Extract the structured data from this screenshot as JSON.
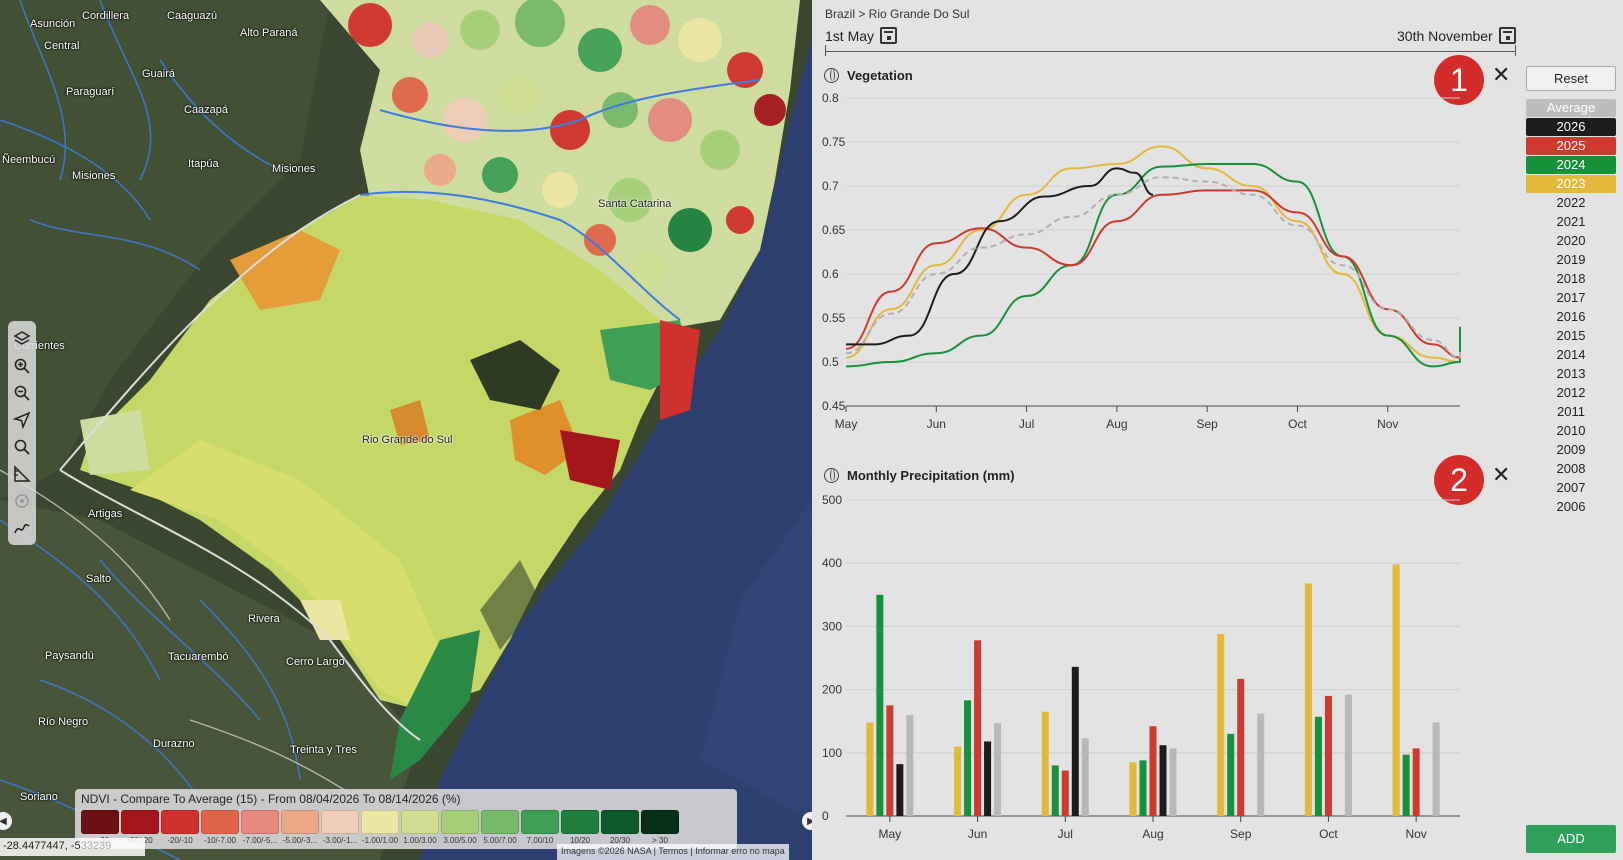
{
  "map": {
    "places": [
      {
        "name": "Asunción",
        "k": "p1"
      },
      {
        "name": "Cordillera",
        "k": "p2"
      },
      {
        "name": "Caaguazú",
        "k": "p3"
      },
      {
        "name": "Alto Paraná",
        "k": "p4"
      },
      {
        "name": "Central",
        "k": "p5"
      },
      {
        "name": "Guairá",
        "k": "p6"
      },
      {
        "name": "Paraguarí",
        "k": "p7"
      },
      {
        "name": "Caazapá",
        "k": "p8"
      },
      {
        "name": "Ñeembucú",
        "k": "p9"
      },
      {
        "name": "Itapúa",
        "k": "p10"
      },
      {
        "name": "Misiones",
        "k": "p11"
      },
      {
        "name": "Misiones",
        "k": "p12"
      },
      {
        "name": "Santa Catarina",
        "k": "p13"
      },
      {
        "name": "Corrientes",
        "k": "p14"
      },
      {
        "name": "Rio Grande do Sul",
        "k": "p15"
      },
      {
        "name": "Artigas",
        "k": "p16"
      },
      {
        "name": "Salto",
        "k": "p17"
      },
      {
        "name": "Rivera",
        "k": "p18"
      },
      {
        "name": "Paysandú",
        "k": "p19"
      },
      {
        "name": "Tacuarembó",
        "k": "p20"
      },
      {
        "name": "Cerro Largo",
        "k": "p21"
      },
      {
        "name": "Río Negro",
        "k": "p22"
      },
      {
        "name": "Durazno",
        "k": "p23"
      },
      {
        "name": "Treinta y Tres",
        "k": "p24"
      },
      {
        "name": "Soriano",
        "k": "p25"
      }
    ],
    "tools": [
      "layers-icon",
      "zoom-in-icon",
      "zoom-out-icon",
      "navigate-icon",
      "search-icon",
      "measure-icon",
      "target-icon",
      "draw-icon"
    ],
    "legend": {
      "title": "NDVI - Compare To Average (15) - From 08/04/2026 To 08/14/2026 (%)",
      "swatches": [
        {
          "label": "< -30",
          "color": "#6b0f12"
        },
        {
          "label": "-30/-20",
          "color": "#a3161c"
        },
        {
          "label": "-20/-10",
          "color": "#d0312d"
        },
        {
          "label": "-10/-7.00",
          "color": "#e0644a"
        },
        {
          "label": "-7.00/-5...",
          "color": "#e58880"
        },
        {
          "label": "-5.00/-3...",
          "color": "#eda888"
        },
        {
          "label": "-3.00/-1...",
          "color": "#f0cdb9"
        },
        {
          "label": "-1.00/1.00",
          "color": "#ece6a3"
        },
        {
          "label": "1.00/3.00",
          "color": "#cedd91"
        },
        {
          "label": "3.00/5.00",
          "color": "#a6cf77"
        },
        {
          "label": "5.00/7.00",
          "color": "#77b96a"
        },
        {
          "label": "7.00/10",
          "color": "#3f9f55"
        },
        {
          "label": "10/20",
          "color": "#1f7f3d"
        },
        {
          "label": "20/30",
          "color": "#0c5a29"
        },
        {
          "label": "> 30",
          "color": "#072e17"
        }
      ]
    },
    "coords": "-28.4477447, -5",
    "coords_faded": "33239",
    "attribution": "Imagens ©2026 NASA | Termos | Informar erro no mapa"
  },
  "panel": {
    "breadcrumb": "Brazil > Rio Grande Do Sul",
    "date_start": "1st May",
    "date_end": "30th November",
    "reset_label": "Reset",
    "add_label": "ADD",
    "years": [
      {
        "label": "Average",
        "bg": "#bdbdbd",
        "fg": "#ffffff"
      },
      {
        "label": "2026",
        "bg": "#1d1d1d",
        "fg": "#ffffff"
      },
      {
        "label": "2025",
        "bg": "#cf3a30",
        "fg": "#ffffff"
      },
      {
        "label": "2024",
        "bg": "#17913a",
        "fg": "#ffffff"
      },
      {
        "label": "2023",
        "bg": "#e2b93b",
        "fg": "#ffffff"
      },
      {
        "label": "2022",
        "bg": "",
        "fg": "#222222"
      },
      {
        "label": "2021",
        "bg": "",
        "fg": "#222222"
      },
      {
        "label": "2020",
        "bg": "",
        "fg": "#222222"
      },
      {
        "label": "2019",
        "bg": "",
        "fg": "#222222"
      },
      {
        "label": "2018",
        "bg": "",
        "fg": "#222222"
      },
      {
        "label": "2017",
        "bg": "",
        "fg": "#222222"
      },
      {
        "label": "2016",
        "bg": "",
        "fg": "#222222"
      },
      {
        "label": "2015",
        "bg": "",
        "fg": "#222222"
      },
      {
        "label": "2014",
        "bg": "",
        "fg": "#222222"
      },
      {
        "label": "2013",
        "bg": "",
        "fg": "#222222"
      },
      {
        "label": "2012",
        "bg": "",
        "fg": "#222222"
      },
      {
        "label": "2011",
        "bg": "",
        "fg": "#222222"
      },
      {
        "label": "2010",
        "bg": "",
        "fg": "#222222"
      },
      {
        "label": "2009",
        "bg": "",
        "fg": "#222222"
      },
      {
        "label": "2008",
        "bg": "",
        "fg": "#222222"
      },
      {
        "label": "2007",
        "bg": "",
        "fg": "#222222"
      },
      {
        "label": "2006",
        "bg": "",
        "fg": "#222222"
      }
    ],
    "badges": [
      "1",
      "2"
    ]
  },
  "chart_data": [
    {
      "type": "line",
      "title": "Vegetation",
      "xlabel": "",
      "ylabel": "",
      "categories": [
        "May",
        "Jun",
        "Jul",
        "Aug",
        "Sep",
        "Oct",
        "Nov"
      ],
      "y_ticks": [
        "0.45",
        "0.5",
        "0.55",
        "0.6",
        "0.65",
        "0.7",
        "0.75",
        "0.8"
      ],
      "ylim": [
        0.45,
        0.8
      ],
      "grid": true,
      "series": [
        {
          "name": "2023",
          "color": "#e2b93b",
          "dashed": false,
          "points": [
            [
              0,
              0.505
            ],
            [
              0.5,
              0.56
            ],
            [
              1,
              0.61
            ],
            [
              1.5,
              0.65
            ],
            [
              2,
              0.69
            ],
            [
              2.5,
              0.72
            ],
            [
              3,
              0.725
            ],
            [
              3.5,
              0.745
            ],
            [
              4,
              0.72
            ],
            [
              4.5,
              0.7
            ],
            [
              5,
              0.66
            ],
            [
              5.5,
              0.6
            ],
            [
              6,
              0.53
            ],
            [
              6.5,
              0.505
            ],
            [
              7,
              0.5
            ],
            [
              7.5,
              0.51
            ]
          ]
        },
        {
          "name": "2024",
          "color": "#17913a",
          "dashed": false,
          "points": [
            [
              0,
              0.495
            ],
            [
              0.5,
              0.5
            ],
            [
              1,
              0.51
            ],
            [
              1.5,
              0.53
            ],
            [
              2,
              0.575
            ],
            [
              2.5,
              0.61
            ],
            [
              3,
              0.69
            ],
            [
              3.5,
              0.722
            ],
            [
              4,
              0.725
            ],
            [
              4.5,
              0.725
            ],
            [
              5,
              0.705
            ],
            [
              5.5,
              0.62
            ],
            [
              6,
              0.53
            ],
            [
              6.5,
              0.495
            ],
            [
              7,
              0.5
            ],
            [
              7.5,
              0.54
            ]
          ]
        },
        {
          "name": "2025",
          "color": "#cf3a30",
          "dashed": false,
          "points": [
            [
              0,
              0.515
            ],
            [
              0.5,
              0.58
            ],
            [
              1,
              0.635
            ],
            [
              1.5,
              0.652
            ],
            [
              2,
              0.63
            ],
            [
              2.5,
              0.61
            ],
            [
              3,
              0.66
            ],
            [
              3.5,
              0.69
            ],
            [
              4,
              0.695
            ],
            [
              4.5,
              0.695
            ],
            [
              5,
              0.67
            ],
            [
              5.5,
              0.62
            ],
            [
              6,
              0.56
            ],
            [
              6.5,
              0.52
            ],
            [
              7,
              0.505
            ],
            [
              7.5,
              0.505
            ]
          ]
        },
        {
          "name": "2026",
          "color": "#1d1d1d",
          "dashed": false,
          "points": [
            [
              0,
              0.52
            ],
            [
              0.3,
              0.52
            ],
            [
              0.7,
              0.53
            ],
            [
              1.2,
              0.6
            ],
            [
              1.7,
              0.66
            ],
            [
              2.2,
              0.688
            ],
            [
              2.7,
              0.7
            ],
            [
              3,
              0.72
            ],
            [
              3.2,
              0.715
            ],
            [
              3.4,
              0.69
            ]
          ]
        },
        {
          "name": "Average",
          "color": "#b0b0b0",
          "dashed": true,
          "points": [
            [
              0,
              0.51
            ],
            [
              0.5,
              0.555
            ],
            [
              1,
              0.6
            ],
            [
              1.5,
              0.63
            ],
            [
              2,
              0.645
            ],
            [
              2.5,
              0.665
            ],
            [
              3,
              0.69
            ],
            [
              3.5,
              0.71
            ],
            [
              4,
              0.705
            ],
            [
              4.5,
              0.69
            ],
            [
              5,
              0.655
            ],
            [
              5.5,
              0.61
            ],
            [
              6,
              0.56
            ],
            [
              6.5,
              0.525
            ],
            [
              7,
              0.505
            ],
            [
              7.5,
              0.515
            ]
          ]
        }
      ]
    },
    {
      "type": "bar",
      "title": "Monthly Precipitation (mm)",
      "xlabel": "",
      "ylabel": "",
      "categories": [
        "May",
        "Jun",
        "Jul",
        "Aug",
        "Sep",
        "Oct",
        "Nov"
      ],
      "y_ticks": [
        "0",
        "100",
        "200",
        "300",
        "400",
        "500"
      ],
      "ylim": [
        0,
        500
      ],
      "grid": true,
      "series": [
        {
          "name": "2023",
          "color": "#e2b93b",
          "values": [
            148,
            110,
            165,
            85,
            288,
            368,
            398
          ]
        },
        {
          "name": "2024",
          "color": "#17913a",
          "values": [
            350,
            183,
            80,
            88,
            130,
            157,
            97
          ]
        },
        {
          "name": "2025",
          "color": "#cf3a30",
          "values": [
            175,
            278,
            72,
            142,
            217,
            190,
            107
          ]
        },
        {
          "name": "2026",
          "color": "#1d1d1d",
          "values": [
            82,
            118,
            236,
            112,
            null,
            null,
            null
          ]
        },
        {
          "name": "Average",
          "color": "#b8b8b8",
          "values": [
            160,
            147,
            123,
            107,
            162,
            192,
            148
          ]
        }
      ]
    }
  ]
}
